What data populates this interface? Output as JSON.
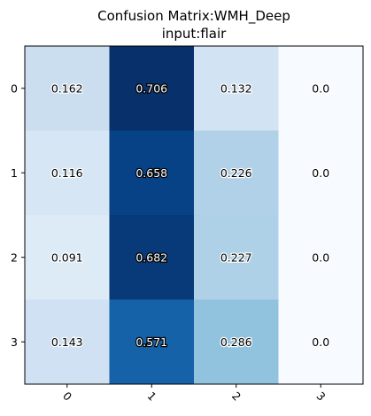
{
  "chart_data": {
    "type": "heatmap",
    "title": "Confusion Matrix:WMH_Deep",
    "subtitle": "input:flair",
    "row_labels": [
      "0",
      "1",
      "2",
      "3"
    ],
    "col_labels": [
      "0",
      "1",
      "2",
      "3"
    ],
    "values": [
      [
        0.162,
        0.706,
        0.132,
        0.0
      ],
      [
        0.116,
        0.658,
        0.226,
        0.0
      ],
      [
        0.091,
        0.682,
        0.227,
        0.0
      ],
      [
        0.143,
        0.571,
        0.286,
        0.0
      ]
    ],
    "value_labels": [
      [
        "0.162",
        "0.706",
        "0.132",
        "0.0"
      ],
      [
        "0.116",
        "0.658",
        "0.226",
        "0.0"
      ],
      [
        "0.091",
        "0.682",
        "0.227",
        "0.0"
      ],
      [
        "0.143",
        "0.571",
        "0.286",
        "0.0"
      ]
    ],
    "colormap": "Blues",
    "color_range": [
      0.0,
      0.706
    ],
    "xtick_rotation": 45
  }
}
